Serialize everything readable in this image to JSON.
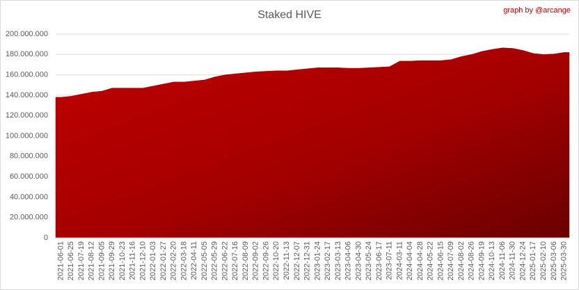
{
  "chart_data": {
    "type": "area",
    "title": "Staked HIVE",
    "annotation": "graph by @arcange",
    "categories": [
      "2021-06-01",
      "2021-06-25",
      "2021-07-19",
      "2021-08-12",
      "2021-09-05",
      "2021-09-29",
      "2021-10-23",
      "2021-11-16",
      "2021-12-10",
      "2022-01-03",
      "2022-01-27",
      "2022-02-20",
      "2022-03-18",
      "2022-04-11",
      "2022-05-05",
      "2022-05-29",
      "2022-06-22",
      "2022-07-16",
      "2022-08-09",
      "2022-09-02",
      "2022-09-26",
      "2022-10-20",
      "2022-11-13",
      "2022-12-07",
      "2022-12-31",
      "2023-01-24",
      "2023-02-17",
      "2023-03-13",
      "2023-04-06",
      "2023-04-30",
      "2023-05-24",
      "2023-06-17",
      "2023-07-11",
      "2024-03-11",
      "2024-04-04",
      "2024-04-28",
      "2024-05-22",
      "2024-06-15",
      "2024-07-09",
      "2024-08-02",
      "2024-08-26",
      "2024-09-19",
      "2024-10-13",
      "2024-11-06",
      "2024-11-30",
      "2024-12-24",
      "2025-01-17",
      "2025-02-10",
      "2025-03-06",
      "2025-03-30"
    ],
    "values": [
      138000000,
      139000000,
      141000000,
      143000000,
      144000000,
      147000000,
      147000000,
      147000000,
      147000000,
      149000000,
      151000000,
      153000000,
      153000000,
      154000000,
      155000000,
      158000000,
      160000000,
      161000000,
      162000000,
      163000000,
      163500000,
      164000000,
      164000000,
      165000000,
      166000000,
      167000000,
      167000000,
      167000000,
      166500000,
      166500000,
      167000000,
      167500000,
      168000000,
      173500000,
      173500000,
      174000000,
      174000000,
      174000000,
      175000000,
      178000000,
      180000000,
      183000000,
      185000000,
      186500000,
      186000000,
      184000000,
      181000000,
      180000000,
      180500000,
      182000000
    ],
    "color": "#c00000",
    "ylim": [
      0,
      200000000
    ],
    "yticks": [
      0,
      {
        "value": 20000000,
        "label": "20.000.000"
      },
      {
        "value": 40000000,
        "label": "40.000.000"
      },
      {
        "value": 60000000,
        "label": "60.000.000"
      },
      {
        "value": 80000000,
        "label": "80.000.000"
      },
      {
        "value": 100000000,
        "label": "100.000.000"
      },
      {
        "value": 120000000,
        "label": "120.000.000"
      },
      {
        "value": 140000000,
        "label": "140.000.000"
      },
      {
        "value": 160000000,
        "label": "160.000.000"
      },
      {
        "value": 180000000,
        "label": "180.000.000"
      },
      {
        "value": 200000000,
        "label": "200.000.000"
      }
    ],
    "grid": true
  }
}
